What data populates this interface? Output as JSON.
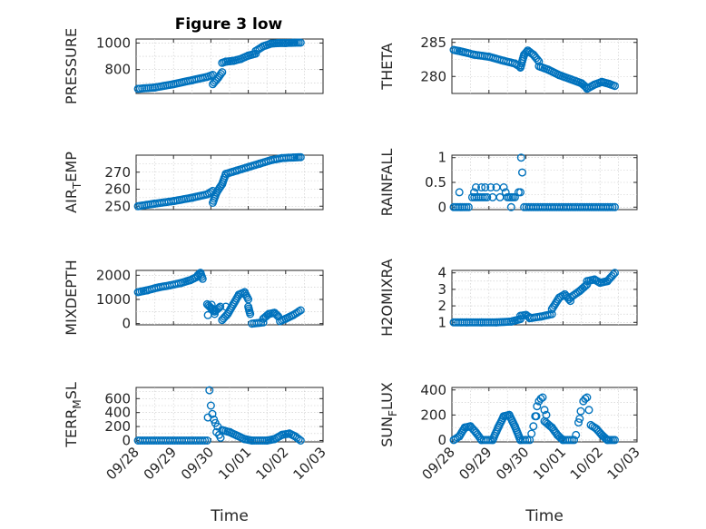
{
  "figure_title": "Figure 3 low",
  "marker_color": "#0072bd",
  "chart_data": [
    {
      "type": "scatter",
      "ylabel": "PRESSURE",
      "xlabel": "",
      "show_xticks": false,
      "xlim": [
        0,
        5
      ],
      "ylim": [
        620,
        1030
      ],
      "yticks": [
        800,
        1000
      ],
      "yticklabels": [
        "800",
        "1000"
      ],
      "grid": true,
      "segments": [
        {
          "x": [
            0.05,
            0.5,
            1.0,
            1.5,
            1.9,
            2.05
          ],
          "y": [
            655,
            665,
            690,
            720,
            745,
            760
          ]
        },
        {
          "x": [
            2.05,
            2.2,
            2.3
          ],
          "y": [
            690,
            740,
            780
          ]
        },
        {
          "x": [
            2.3,
            2.4,
            2.6,
            2.8,
            3.0,
            3.2
          ],
          "y": [
            850,
            860,
            865,
            880,
            905,
            920
          ]
        },
        {
          "x": [
            3.2,
            3.4,
            3.6,
            3.8,
            4.0,
            4.2,
            4.4
          ],
          "y": [
            940,
            975,
            995,
            1000,
            1000,
            1002,
            1003
          ]
        }
      ]
    },
    {
      "type": "scatter",
      "ylabel": "THETA",
      "xlabel": "",
      "show_xticks": false,
      "xlim": [
        0,
        5
      ],
      "ylim": [
        277.5,
        285.5
      ],
      "yticks": [
        280,
        285
      ],
      "yticklabels": [
        "280",
        "285"
      ],
      "grid": true,
      "segments": [
        {
          "x": [
            0.05,
            0.3,
            0.6,
            1.0,
            1.4,
            1.7,
            1.85
          ],
          "y": [
            283.9,
            283.6,
            283.2,
            282.9,
            282.3,
            281.9,
            281.4
          ]
        },
        {
          "x": [
            1.85,
            1.95,
            2.05,
            2.2,
            2.35
          ],
          "y": [
            281.3,
            283.2,
            283.8,
            283.2,
            282.2
          ]
        },
        {
          "x": [
            2.35,
            2.6,
            2.9,
            3.2,
            3.5,
            3.65
          ],
          "y": [
            281.5,
            281.0,
            280.2,
            279.6,
            279.0,
            278.3
          ]
        },
        {
          "x": [
            3.65,
            3.85,
            4.05,
            4.25,
            4.4
          ],
          "y": [
            278.2,
            278.8,
            279.2,
            278.9,
            278.6
          ]
        }
      ]
    },
    {
      "type": "scatter",
      "ylabel": "AIR_TEMP",
      "xlabel": "",
      "show_xticks": false,
      "xlim": [
        0,
        5
      ],
      "ylim": [
        248,
        280
      ],
      "yticks": [
        250,
        260,
        270
      ],
      "yticklabels": [
        "250",
        "260",
        "270"
      ],
      "grid": true,
      "segments": [
        {
          "x": [
            0.05,
            0.5,
            1.0,
            1.5,
            1.9,
            2.05
          ],
          "y": [
            250,
            251.5,
            253,
            255,
            257,
            259
          ]
        },
        {
          "x": [
            2.05,
            2.15,
            2.3,
            2.4
          ],
          "y": [
            252,
            258,
            263,
            269
          ]
        },
        {
          "x": [
            2.4,
            2.7,
            3.0,
            3.3,
            3.6,
            3.9,
            4.2,
            4.4
          ],
          "y": [
            269,
            271,
            273,
            275,
            277,
            278.3,
            278.6,
            278.8
          ]
        }
      ]
    },
    {
      "type": "scatter",
      "ylabel": "RAINFALL",
      "xlabel": "",
      "show_xticks": false,
      "xlim": [
        0,
        5
      ],
      "ylim": [
        -0.05,
        1.05
      ],
      "yticks": [
        0,
        0.5,
        1
      ],
      "yticklabels": [
        "0",
        "0.5",
        "1"
      ],
      "grid": true,
      "segments": [
        {
          "x": [
            0.05,
            0.45
          ],
          "y": [
            0,
            0
          ]
        },
        {
          "x": [
            0.55,
            0.95
          ],
          "y": [
            0.2,
            0.2
          ]
        },
        {
          "x": [
            1.55,
            1.65
          ],
          "y": [
            0.2,
            0.2
          ]
        },
        {
          "x": [
            1.95,
            4.4
          ],
          "y": [
            0,
            0
          ]
        }
      ],
      "points": [
        {
          "x": 0.2,
          "y": 0.3
        },
        {
          "x": 0.65,
          "y": 0.4
        },
        {
          "x": 0.8,
          "y": 0.4
        },
        {
          "x": 0.9,
          "y": 0.4
        },
        {
          "x": 1.05,
          "y": 0.4
        },
        {
          "x": 1.2,
          "y": 0.4
        },
        {
          "x": 1.3,
          "y": 0.2
        },
        {
          "x": 1.4,
          "y": 0.4
        },
        {
          "x": 1.45,
          "y": 0.3
        },
        {
          "x": 1.5,
          "y": 0.2
        },
        {
          "x": 1.6,
          "y": 0
        },
        {
          "x": 1.7,
          "y": 0.2
        },
        {
          "x": 1.8,
          "y": 0.3
        },
        {
          "x": 1.85,
          "y": 0.3
        },
        {
          "x": 1.9,
          "y": 0.7
        },
        {
          "x": 1.87,
          "y": 1.0
        },
        {
          "x": 1.1,
          "y": 0.2
        },
        {
          "x": 0.6,
          "y": 0.3
        }
      ]
    },
    {
      "type": "scatter",
      "ylabel": "MIXDEPTH",
      "xlabel": "",
      "show_xticks": false,
      "xlim": [
        0,
        5
      ],
      "ylim": [
        -50,
        2200
      ],
      "yticks": [
        0,
        1000,
        2000
      ],
      "yticklabels": [
        "0",
        "1000",
        "2000"
      ],
      "grid": true,
      "segments": [
        {
          "x": [
            0.05,
            0.3,
            0.6,
            0.9,
            1.2,
            1.45,
            1.65
          ],
          "y": [
            1300,
            1380,
            1500,
            1580,
            1680,
            1800,
            1950
          ]
        },
        {
          "x": [
            1.65,
            1.72,
            1.78
          ],
          "y": [
            2000,
            2100,
            1850
          ]
        },
        {
          "x": [
            1.9,
            2.0,
            2.1,
            2.25
          ],
          "y": [
            800,
            650,
            500,
            700
          ]
        },
        {
          "x": [
            2.3,
            2.45,
            2.6,
            2.75,
            2.9,
            3.0
          ],
          "y": [
            150,
            400,
            800,
            1200,
            1300,
            1000
          ]
        },
        {
          "x": [
            3.0,
            3.05
          ],
          "y": [
            700,
            400
          ]
        },
        {
          "x": [
            3.1,
            3.4
          ],
          "y": [
            0,
            50
          ]
        },
        {
          "x": [
            3.4,
            3.55,
            3.7,
            3.8
          ],
          "y": [
            200,
            400,
            450,
            300
          ]
        },
        {
          "x": [
            3.85,
            4.0,
            4.2,
            4.4
          ],
          "y": [
            100,
            200,
            350,
            550
          ]
        }
      ],
      "points": [
        {
          "x": 1.92,
          "y": 350
        },
        {
          "x": 2.02,
          "y": 780
        },
        {
          "x": 2.4,
          "y": 700
        },
        {
          "x": 2.1,
          "y": 400
        }
      ]
    },
    {
      "type": "scatter",
      "ylabel": "H2OMIXRA",
      "xlabel": "",
      "show_xticks": false,
      "xlim": [
        0,
        5
      ],
      "ylim": [
        0.85,
        4.15
      ],
      "yticks": [
        1,
        2,
        3,
        4
      ],
      "yticklabels": [
        "1",
        "2",
        "3",
        "4"
      ],
      "grid": true,
      "segments": [
        {
          "x": [
            0.05,
            0.4,
            0.8,
            1.2,
            1.6,
            1.85
          ],
          "y": [
            1.0,
            1.0,
            1.0,
            1.0,
            1.05,
            1.2
          ]
        },
        {
          "x": [
            1.85,
            2.0,
            2.1
          ],
          "y": [
            1.4,
            1.45,
            1.3
          ]
        },
        {
          "x": [
            2.1,
            2.4,
            2.7
          ],
          "y": [
            1.25,
            1.35,
            1.5
          ]
        },
        {
          "x": [
            2.7,
            2.9,
            3.05,
            3.2
          ],
          "y": [
            1.8,
            2.5,
            2.7,
            2.3
          ]
        },
        {
          "x": [
            3.2,
            3.45,
            3.65
          ],
          "y": [
            2.5,
            2.9,
            3.3
          ]
        },
        {
          "x": [
            3.65,
            3.85,
            4.0,
            4.2,
            4.4
          ],
          "y": [
            3.5,
            3.6,
            3.4,
            3.5,
            4.0
          ]
        }
      ]
    },
    {
      "type": "scatter",
      "ylabel": "TERR_MSL",
      "xlabel": "Time",
      "show_xticks": true,
      "xlim": [
        0,
        5
      ],
      "ylim": [
        -20,
        760
      ],
      "yticks": [
        0,
        200,
        400,
        600
      ],
      "yticklabels": [
        "0",
        "200",
        "400",
        "600"
      ],
      "grid": true,
      "xticks": [
        0,
        1,
        2,
        3,
        4,
        5
      ],
      "xticklabels": [
        "09/28",
        "09/29",
        "09/30",
        "10/01",
        "10/02",
        "10/03"
      ],
      "segments": [
        {
          "x": [
            0.05,
            1.9
          ],
          "y": [
            0,
            0
          ]
        },
        {
          "x": [
            2.3,
            2.5,
            2.7,
            2.9,
            3.1
          ],
          "y": [
            150,
            120,
            70,
            20,
            0
          ]
        },
        {
          "x": [
            3.1,
            3.5,
            3.7,
            3.9,
            4.1,
            4.25,
            4.4
          ],
          "y": [
            0,
            0,
            20,
            80,
            100,
            60,
            0
          ]
        }
      ],
      "points": [
        {
          "x": 1.92,
          "y": 330
        },
        {
          "x": 1.96,
          "y": 720
        },
        {
          "x": 2.0,
          "y": 500
        },
        {
          "x": 2.04,
          "y": 380
        },
        {
          "x": 2.08,
          "y": 300
        },
        {
          "x": 2.12,
          "y": 250
        },
        {
          "x": 2.18,
          "y": 200
        },
        {
          "x": 2.22,
          "y": 80
        },
        {
          "x": 2.26,
          "y": 40
        },
        {
          "x": 2.15,
          "y": 120
        }
      ]
    },
    {
      "type": "scatter",
      "ylabel": "SUN_FLUX",
      "xlabel": "Time",
      "show_xticks": true,
      "xlim": [
        0,
        5
      ],
      "ylim": [
        -15,
        420
      ],
      "yticks": [
        0,
        200,
        400
      ],
      "yticklabels": [
        "0",
        "200",
        "400"
      ],
      "grid": true,
      "xticks": [
        0,
        1,
        2,
        3,
        4,
        5
      ],
      "xticklabels": [
        "09/28",
        "09/29",
        "09/30",
        "10/01",
        "10/02",
        "10/03"
      ],
      "segments": [
        {
          "x": [
            0.05,
            0.2,
            0.35,
            0.5,
            0.65,
            0.8
          ],
          "y": [
            0,
            30,
            100,
            110,
            60,
            0
          ]
        },
        {
          "x": [
            0.8,
            1.1
          ],
          "y": [
            0,
            0
          ]
        },
        {
          "x": [
            1.1,
            1.25,
            1.4,
            1.55,
            1.7,
            1.85
          ],
          "y": [
            0,
            100,
            190,
            200,
            110,
            0
          ]
        },
        {
          "x": [
            1.85,
            2.1
          ],
          "y": [
            0,
            0
          ]
        },
        {
          "x": [
            2.5,
            2.7,
            2.85,
            3.0
          ],
          "y": [
            150,
            100,
            40,
            0
          ]
        },
        {
          "x": [
            3.0,
            3.3
          ],
          "y": [
            0,
            0
          ]
        },
        {
          "x": [
            3.75,
            3.9,
            4.05,
            4.2,
            4.4
          ],
          "y": [
            120,
            90,
            40,
            0,
            0
          ]
        }
      ],
      "points": [
        {
          "x": 2.15,
          "y": 50
        },
        {
          "x": 2.2,
          "y": 110
        },
        {
          "x": 2.25,
          "y": 190
        },
        {
          "x": 2.3,
          "y": 270
        },
        {
          "x": 2.35,
          "y": 310
        },
        {
          "x": 2.4,
          "y": 330
        },
        {
          "x": 2.45,
          "y": 340
        },
        {
          "x": 2.5,
          "y": 240
        },
        {
          "x": 2.55,
          "y": 200
        },
        {
          "x": 2.28,
          "y": 190
        },
        {
          "x": 3.35,
          "y": 40
        },
        {
          "x": 3.42,
          "y": 140
        },
        {
          "x": 3.48,
          "y": 230
        },
        {
          "x": 3.55,
          "y": 310
        },
        {
          "x": 3.6,
          "y": 330
        },
        {
          "x": 3.65,
          "y": 340
        },
        {
          "x": 3.7,
          "y": 240
        },
        {
          "x": 3.45,
          "y": 170
        }
      ]
    }
  ]
}
